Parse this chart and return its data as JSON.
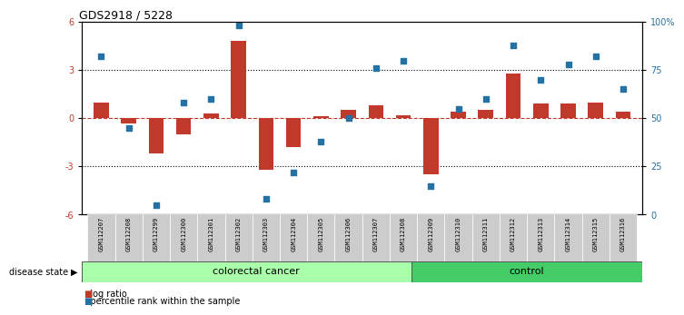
{
  "title": "GDS2918 / 5228",
  "samples": [
    "GSM112207",
    "GSM112208",
    "GSM112299",
    "GSM112300",
    "GSM112301",
    "GSM112302",
    "GSM112303",
    "GSM112304",
    "GSM112305",
    "GSM112306",
    "GSM112307",
    "GSM112308",
    "GSM112309",
    "GSM112310",
    "GSM112311",
    "GSM112312",
    "GSM112313",
    "GSM112314",
    "GSM112315",
    "GSM112316"
  ],
  "log_ratio": [
    1.0,
    -0.3,
    -2.2,
    -1.0,
    0.3,
    4.8,
    -3.2,
    -1.8,
    0.15,
    0.5,
    0.8,
    0.2,
    -3.5,
    0.4,
    0.5,
    2.8,
    0.9,
    0.9,
    1.0,
    0.4
  ],
  "percentile_rank": [
    82,
    45,
    5,
    58,
    60,
    98,
    8,
    22,
    38,
    50,
    76,
    80,
    15,
    55,
    60,
    88,
    70,
    78,
    82,
    65
  ],
  "colorectal_count": 12,
  "control_count": 8,
  "ylim": [
    -6,
    6
  ],
  "bar_color": "#c0392b",
  "dot_color": "#2471a3",
  "colorectal_color": "#aaffaa",
  "control_color": "#44cc66",
  "disease_label": "colorectal cancer",
  "control_label": "control",
  "legend_log_ratio": "log ratio",
  "legend_pct": "percentile rank within the sample",
  "yticks_left": [
    -6,
    -3,
    0,
    3,
    6
  ],
  "yticks_right_vals": [
    0,
    25,
    50,
    75,
    100
  ],
  "yticks_right_labels": [
    "0",
    "25",
    "50",
    "75",
    "100%"
  ]
}
